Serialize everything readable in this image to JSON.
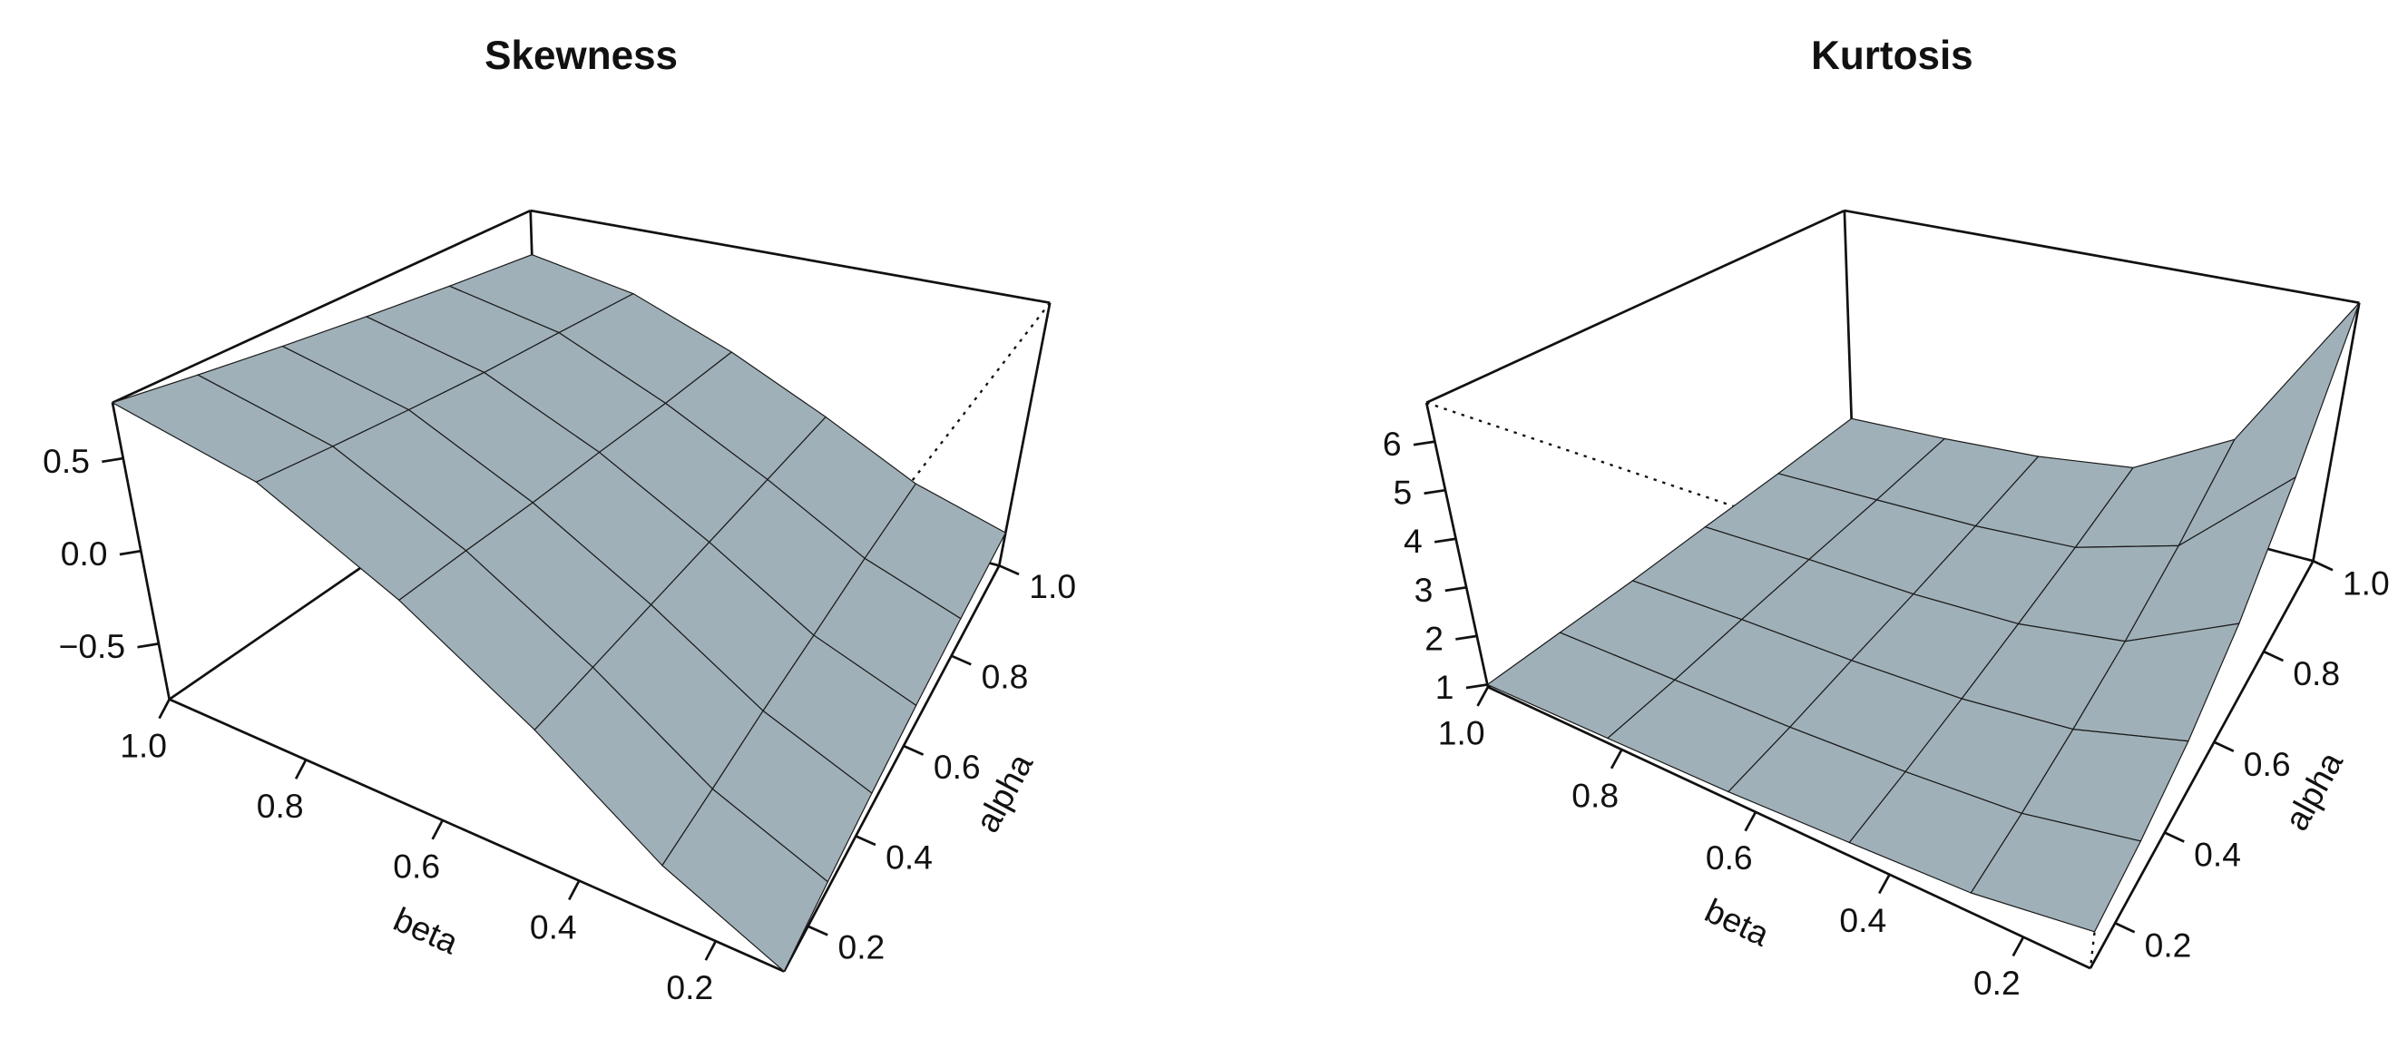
{
  "chart_data": [
    {
      "type": "surface",
      "title": "Skewness",
      "xlabel": "beta",
      "ylabel": "alpha",
      "color": "#9fb0b8",
      "x": [
        0.1,
        0.28,
        0.46,
        0.64,
        0.82,
        1.0
      ],
      "y": [
        0.1,
        0.28,
        0.46,
        0.64,
        0.82,
        1.0
      ],
      "z": [
        [
          -0.8,
          -0.56,
          -0.16,
          0.24,
          0.61,
          0.8
        ],
        [
          -0.76,
          -0.54,
          -0.16,
          0.22,
          0.56,
          0.74
        ],
        [
          -0.72,
          -0.51,
          -0.16,
          0.19,
          0.51,
          0.68
        ],
        [
          -0.68,
          -0.49,
          -0.16,
          0.17,
          0.46,
          0.62
        ],
        [
          -0.64,
          -0.46,
          -0.16,
          0.14,
          0.42,
          0.56
        ],
        [
          -0.6,
          -0.44,
          -0.16,
          0.12,
          0.37,
          0.5
        ]
      ],
      "xlim": [
        0.1,
        1.0
      ],
      "ylim": [
        0.1,
        1.0
      ],
      "zlim": [
        -0.8,
        0.8
      ],
      "xticks": [
        0.2,
        0.4,
        0.6,
        0.8,
        {
          "value": 1.0,
          "label": "1.0"
        }
      ],
      "yticks": [
        0.2,
        0.4,
        0.6,
        0.8,
        {
          "value": 1.0,
          "label": "1.0"
        }
      ],
      "zticks": [
        {
          "value": -0.5,
          "label": "−0.5"
        },
        {
          "value": 0,
          "label": "0.0"
        },
        0.5
      ]
    },
    {
      "type": "surface",
      "title": "Kurtosis",
      "xlabel": "beta",
      "ylabel": "alpha",
      "color": "#9fb0b8",
      "x": [
        0.1,
        0.28,
        0.46,
        0.64,
        0.82,
        1.0
      ],
      "y": [
        0.1,
        0.28,
        0.46,
        0.64,
        0.82,
        1.0
      ],
      "z": [
        [
          1.6,
          1.3,
          1.2,
          1.1,
          1.05,
          1.0
        ],
        [
          1.8,
          1.4,
          1.25,
          1.15,
          1.1,
          1.05
        ],
        [
          2.2,
          1.6,
          1.35,
          1.25,
          1.2,
          1.1
        ],
        [
          3.0,
          1.9,
          1.5,
          1.35,
          1.3,
          1.2
        ],
        [
          4.5,
          2.4,
          1.7,
          1.5,
          1.4,
          1.3
        ],
        [
          6.8,
          3.2,
          2.0,
          1.7,
          1.55,
          1.45
        ]
      ],
      "xlim": [
        0.1,
        1.0
      ],
      "ylim": [
        0.1,
        1.0
      ],
      "zlim": [
        0.95,
        6.8
      ],
      "xticks": [
        0.2,
        0.4,
        0.6,
        0.8,
        {
          "value": 1.0,
          "label": "1.0"
        }
      ],
      "yticks": [
        0.2,
        0.4,
        0.6,
        0.8,
        {
          "value": 1.0,
          "label": "1.0"
        }
      ],
      "zticks": [
        1,
        2,
        3,
        4,
        5,
        6
      ]
    }
  ]
}
